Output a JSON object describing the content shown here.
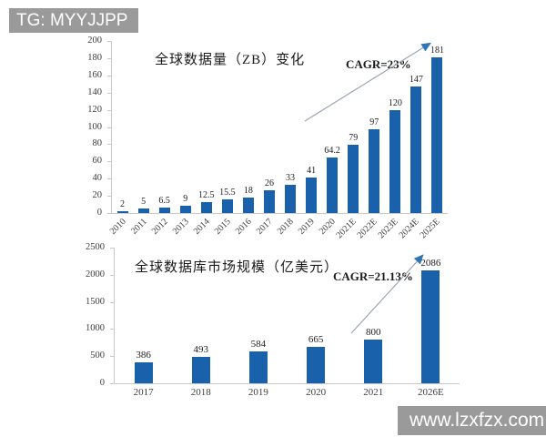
{
  "watermarks": {
    "top_left": "TG: MYYJJPP",
    "bottom_right": "www.lzxfzx.com"
  },
  "colors": {
    "bar": "#1a61ab",
    "axis": "#c8c8c8",
    "badge_bg": "#9a9a9a",
    "badge_text": "#ffffff",
    "arrow_line": "#9aa4b0",
    "arrow_head": "#2e75b6"
  },
  "chart_data": [
    {
      "type": "bar",
      "title": "全球数据量（ZB）变化",
      "annotation": "CAGR=23%",
      "categories": [
        "2010",
        "2011",
        "2012",
        "2013",
        "2014",
        "2015",
        "2016",
        "2017",
        "2018",
        "2019",
        "2020",
        "2021E",
        "2022E",
        "2023E",
        "2024E",
        "2025E"
      ],
      "values": [
        2,
        5,
        6.5,
        9,
        12.5,
        15.5,
        18,
        26,
        33,
        41,
        64.2,
        79,
        97,
        120,
        147,
        181
      ],
      "ylim": [
        0,
        200
      ],
      "ytick_step": 20,
      "x_label_rotation": -45,
      "grid": false,
      "legend": false
    },
    {
      "type": "bar",
      "title": "全球数据库市场规模（亿美元）",
      "annotation": "CAGR=21.13%",
      "categories": [
        "2017",
        "2018",
        "2019",
        "2020",
        "2021",
        "2026E"
      ],
      "values": [
        386,
        493,
        584,
        665,
        800,
        2086
      ],
      "ylim": [
        0,
        2500
      ],
      "ytick_step": 500,
      "x_label_rotation": 0,
      "grid": false,
      "legend": false
    }
  ]
}
